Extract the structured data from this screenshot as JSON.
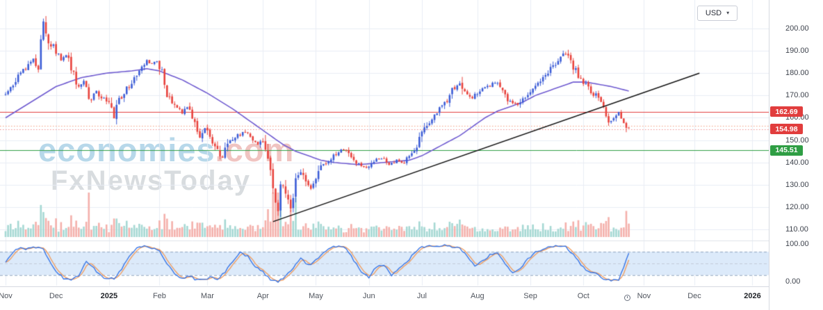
{
  "toolbar": {
    "currency": "USD",
    "caret": "▾"
  },
  "watermark": {
    "brand": "economies",
    "brand_suffix": ".com",
    "subbrand": "FxNewsToday"
  },
  "chart_data": {
    "type": "candlestick",
    "panes": [
      "price+volume",
      "stochastic-oscillator"
    ],
    "last_price": "154.98",
    "y_axis": {
      "price_ticks": [
        {
          "value": 200,
          "label": "200.00"
        },
        {
          "value": 190,
          "label": "190.00"
        },
        {
          "value": 180,
          "label": "180.00"
        },
        {
          "value": 170,
          "label": "170.00"
        },
        {
          "value": 160,
          "label": "160.00"
        },
        {
          "value": 150,
          "label": "150.00"
        },
        {
          "value": 140,
          "label": "140.00"
        },
        {
          "value": 130,
          "label": "130.00"
        },
        {
          "value": 120,
          "label": "120.00"
        },
        {
          "value": 110,
          "label": "110.00"
        }
      ],
      "indicator_ticks": [
        {
          "value": 100,
          "label": "100.00"
        },
        {
          "value": 0,
          "label": "0.00"
        }
      ]
    },
    "x_axis": {
      "months": [
        {
          "label": "Nov",
          "day": 0,
          "year": false
        },
        {
          "label": "Dec",
          "day": 20,
          "year": false
        },
        {
          "label": "2025",
          "day": 41,
          "year": true
        },
        {
          "label": "Feb",
          "day": 61,
          "year": false
        },
        {
          "label": "Mar",
          "day": 80,
          "year": false
        },
        {
          "label": "Apr",
          "day": 102,
          "year": false
        },
        {
          "label": "May",
          "day": 123,
          "year": false
        },
        {
          "label": "Jun",
          "day": 144,
          "year": false
        },
        {
          "label": "Jul",
          "day": 165,
          "year": false
        },
        {
          "label": "Aug",
          "day": 187,
          "year": false
        },
        {
          "label": "Sep",
          "day": 208,
          "year": false
        },
        {
          "label": "Oct",
          "day": 229,
          "year": false
        },
        {
          "label": "Nov",
          "day": 253,
          "year": false
        },
        {
          "label": "Dec",
          "day": 273,
          "year": false
        },
        {
          "label": "2026",
          "day": 296,
          "year": true
        }
      ]
    },
    "levels": [
      {
        "price": 162.69,
        "label": "162.69",
        "line": "solid",
        "line_color": "#e13d3d",
        "tag": true,
        "tag_color": "#e13d3d"
      },
      {
        "price": 156.4,
        "label": "",
        "line": "dotted",
        "line_color": "#f59e7c",
        "tag": false,
        "tag_color": ""
      },
      {
        "price": 154.98,
        "label": "154.98",
        "line": "dotted",
        "line_color": "#ef8a8a",
        "tag": true,
        "tag_color": "#e13d3d"
      },
      {
        "price": 145.51,
        "label": "145.51",
        "line": "solid",
        "line_color": "#2f9e44",
        "tag": true,
        "tag_color": "#2f9e44"
      }
    ],
    "trendline": {
      "from_day": 106,
      "from_price": 113.5,
      "to_day": 275,
      "to_price": 180
    },
    "indicator": {
      "name": "Stochastic",
      "range": [
        0,
        100
      ],
      "overbought": 80,
      "midline": 50,
      "oversold": 20
    },
    "series": {
      "candle_count": 248,
      "price_close_keyframes": [
        [
          0,
          171
        ],
        [
          3,
          175
        ],
        [
          6,
          180
        ],
        [
          9,
          183
        ],
        [
          11,
          186
        ],
        [
          13,
          182
        ],
        [
          14,
          193
        ],
        [
          15,
          203
        ],
        [
          17,
          195
        ],
        [
          20,
          190
        ],
        [
          22,
          186
        ],
        [
          25,
          188
        ],
        [
          28,
          174
        ],
        [
          31,
          176
        ],
        [
          33,
          168
        ],
        [
          36,
          172
        ],
        [
          39,
          168
        ],
        [
          41,
          166
        ],
        [
          43,
          160
        ],
        [
          45,
          168
        ],
        [
          48,
          173
        ],
        [
          51,
          178
        ],
        [
          54,
          183
        ],
        [
          56,
          186
        ],
        [
          58,
          184
        ],
        [
          60,
          186
        ],
        [
          62,
          181
        ],
        [
          64,
          171
        ],
        [
          67,
          166
        ],
        [
          70,
          162
        ],
        [
          72,
          165
        ],
        [
          75,
          159
        ],
        [
          77,
          152
        ],
        [
          79,
          155
        ],
        [
          81,
          151
        ],
        [
          84,
          147
        ],
        [
          86,
          142
        ],
        [
          88,
          148
        ],
        [
          91,
          151
        ],
        [
          94,
          154
        ],
        [
          97,
          152
        ],
        [
          100,
          148
        ],
        [
          102,
          150
        ],
        [
          104,
          143
        ],
        [
          106,
          127
        ],
        [
          108,
          118
        ],
        [
          109,
          131
        ],
        [
          111,
          126
        ],
        [
          113,
          120
        ],
        [
          115,
          131
        ],
        [
          117,
          136
        ],
        [
          119,
          130
        ],
        [
          121,
          128
        ],
        [
          123,
          133
        ],
        [
          125,
          138
        ],
        [
          128,
          141
        ],
        [
          131,
          144
        ],
        [
          134,
          146
        ],
        [
          137,
          142
        ],
        [
          140,
          139
        ],
        [
          143,
          138
        ],
        [
          146,
          141
        ],
        [
          149,
          142
        ],
        [
          152,
          139
        ],
        [
          155,
          141
        ],
        [
          158,
          140
        ],
        [
          161,
          144
        ],
        [
          164,
          150
        ],
        [
          166,
          155
        ],
        [
          168,
          158
        ],
        [
          170,
          161
        ],
        [
          173,
          165
        ],
        [
          176,
          170
        ],
        [
          178,
          174
        ],
        [
          180,
          176
        ],
        [
          182,
          171
        ],
        [
          185,
          169
        ],
        [
          188,
          172
        ],
        [
          191,
          174
        ],
        [
          194,
          176
        ],
        [
          197,
          172
        ],
        [
          200,
          167
        ],
        [
          203,
          166
        ],
        [
          206,
          170
        ],
        [
          208,
          172
        ],
        [
          211,
          175
        ],
        [
          214,
          179
        ],
        [
          217,
          183
        ],
        [
          220,
          187
        ],
        [
          222,
          189
        ],
        [
          224,
          185
        ],
        [
          227,
          179
        ],
        [
          230,
          175
        ],
        [
          232,
          171
        ],
        [
          234,
          170
        ],
        [
          237,
          165
        ],
        [
          239,
          158
        ],
        [
          241,
          160
        ],
        [
          243,
          163
        ],
        [
          245,
          159
        ],
        [
          247,
          155
        ]
      ],
      "ma_keyframes": [
        [
          0,
          160
        ],
        [
          10,
          167
        ],
        [
          20,
          174
        ],
        [
          30,
          178
        ],
        [
          40,
          180
        ],
        [
          50,
          181
        ],
        [
          56,
          182
        ],
        [
          61,
          181
        ],
        [
          70,
          177
        ],
        [
          80,
          171
        ],
        [
          90,
          164
        ],
        [
          100,
          156
        ],
        [
          105,
          152
        ],
        [
          110,
          148
        ],
        [
          115,
          145
        ],
        [
          120,
          143
        ],
        [
          125,
          141
        ],
        [
          130,
          140
        ],
        [
          140,
          139
        ],
        [
          150,
          140
        ],
        [
          160,
          141
        ],
        [
          165,
          143
        ],
        [
          170,
          146
        ],
        [
          175,
          149
        ],
        [
          180,
          152
        ],
        [
          185,
          156
        ],
        [
          190,
          160
        ],
        [
          195,
          163
        ],
        [
          200,
          165
        ],
        [
          205,
          167
        ],
        [
          210,
          170
        ],
        [
          215,
          172
        ],
        [
          220,
          174
        ],
        [
          225,
          176
        ],
        [
          230,
          176
        ],
        [
          235,
          175
        ],
        [
          240,
          174
        ],
        [
          247,
          172
        ]
      ],
      "stochastic_k_keyframes": [
        [
          0,
          55
        ],
        [
          2,
          70
        ],
        [
          4,
          85
        ],
        [
          6,
          90
        ],
        [
          8,
          86
        ],
        [
          10,
          90
        ],
        [
          13,
          93
        ],
        [
          15,
          88
        ],
        [
          17,
          60
        ],
        [
          20,
          30
        ],
        [
          23,
          12
        ],
        [
          26,
          8
        ],
        [
          29,
          20
        ],
        [
          32,
          55
        ],
        [
          34,
          45
        ],
        [
          37,
          22
        ],
        [
          40,
          10
        ],
        [
          43,
          12
        ],
        [
          46,
          35
        ],
        [
          49,
          70
        ],
        [
          52,
          88
        ],
        [
          55,
          94
        ],
        [
          58,
          90
        ],
        [
          61,
          80
        ],
        [
          64,
          50
        ],
        [
          67,
          22
        ],
        [
          70,
          10
        ],
        [
          73,
          18
        ],
        [
          75,
          10
        ],
        [
          78,
          7
        ],
        [
          81,
          14
        ],
        [
          84,
          10
        ],
        [
          87,
          28
        ],
        [
          90,
          55
        ],
        [
          93,
          78
        ],
        [
          96,
          68
        ],
        [
          99,
          42
        ],
        [
          102,
          28
        ],
        [
          105,
          8
        ],
        [
          108,
          4
        ],
        [
          111,
          16
        ],
        [
          114,
          38
        ],
        [
          117,
          62
        ],
        [
          120,
          45
        ],
        [
          123,
          58
        ],
        [
          126,
          78
        ],
        [
          129,
          92
        ],
        [
          132,
          95
        ],
        [
          135,
          88
        ],
        [
          138,
          58
        ],
        [
          141,
          28
        ],
        [
          144,
          14
        ],
        [
          147,
          42
        ],
        [
          150,
          46
        ],
        [
          153,
          20
        ],
        [
          156,
          36
        ],
        [
          159,
          52
        ],
        [
          162,
          78
        ],
        [
          165,
          92
        ],
        [
          168,
          96
        ],
        [
          171,
          95
        ],
        [
          174,
          96
        ],
        [
          177,
          93
        ],
        [
          180,
          90
        ],
        [
          183,
          68
        ],
        [
          186,
          44
        ],
        [
          189,
          56
        ],
        [
          192,
          72
        ],
        [
          195,
          76
        ],
        [
          198,
          48
        ],
        [
          201,
          24
        ],
        [
          204,
          36
        ],
        [
          207,
          62
        ],
        [
          210,
          78
        ],
        [
          213,
          88
        ],
        [
          216,
          94
        ],
        [
          219,
          96
        ],
        [
          222,
          92
        ],
        [
          225,
          72
        ],
        [
          228,
          48
        ],
        [
          231,
          28
        ],
        [
          234,
          24
        ],
        [
          237,
          10
        ],
        [
          240,
          6
        ],
        [
          243,
          9
        ],
        [
          245,
          42
        ],
        [
          247,
          78
        ]
      ],
      "volume_spikes": [
        [
          33,
          3.8
        ],
        [
          104,
          2.0
        ],
        [
          106,
          2.8
        ],
        [
          107,
          2.6
        ],
        [
          108,
          3.0
        ],
        [
          109,
          2.4
        ],
        [
          110,
          2.2
        ],
        [
          113,
          1.9
        ],
        [
          115,
          1.6
        ],
        [
          180,
          1.7
        ],
        [
          222,
          1.5
        ],
        [
          230,
          1.6
        ],
        [
          239,
          1.7
        ],
        [
          246,
          2.0
        ],
        [
          247,
          3.0
        ]
      ]
    },
    "colors": {
      "up": "#3b5cd6",
      "down": "#e8423c",
      "volume_up": "#a5d8d3",
      "volume_down": "#f4b0ab",
      "ma": "#6f5bd0",
      "stoch_k": "#2f6fe4",
      "stoch_d": "#f09a5a",
      "stoch_band": "#dceafa",
      "stoch_dash": "#90a4bf",
      "trendline": "#111111",
      "grid": "#e9edf4",
      "pane_separator": "#dfe3ea"
    }
  }
}
